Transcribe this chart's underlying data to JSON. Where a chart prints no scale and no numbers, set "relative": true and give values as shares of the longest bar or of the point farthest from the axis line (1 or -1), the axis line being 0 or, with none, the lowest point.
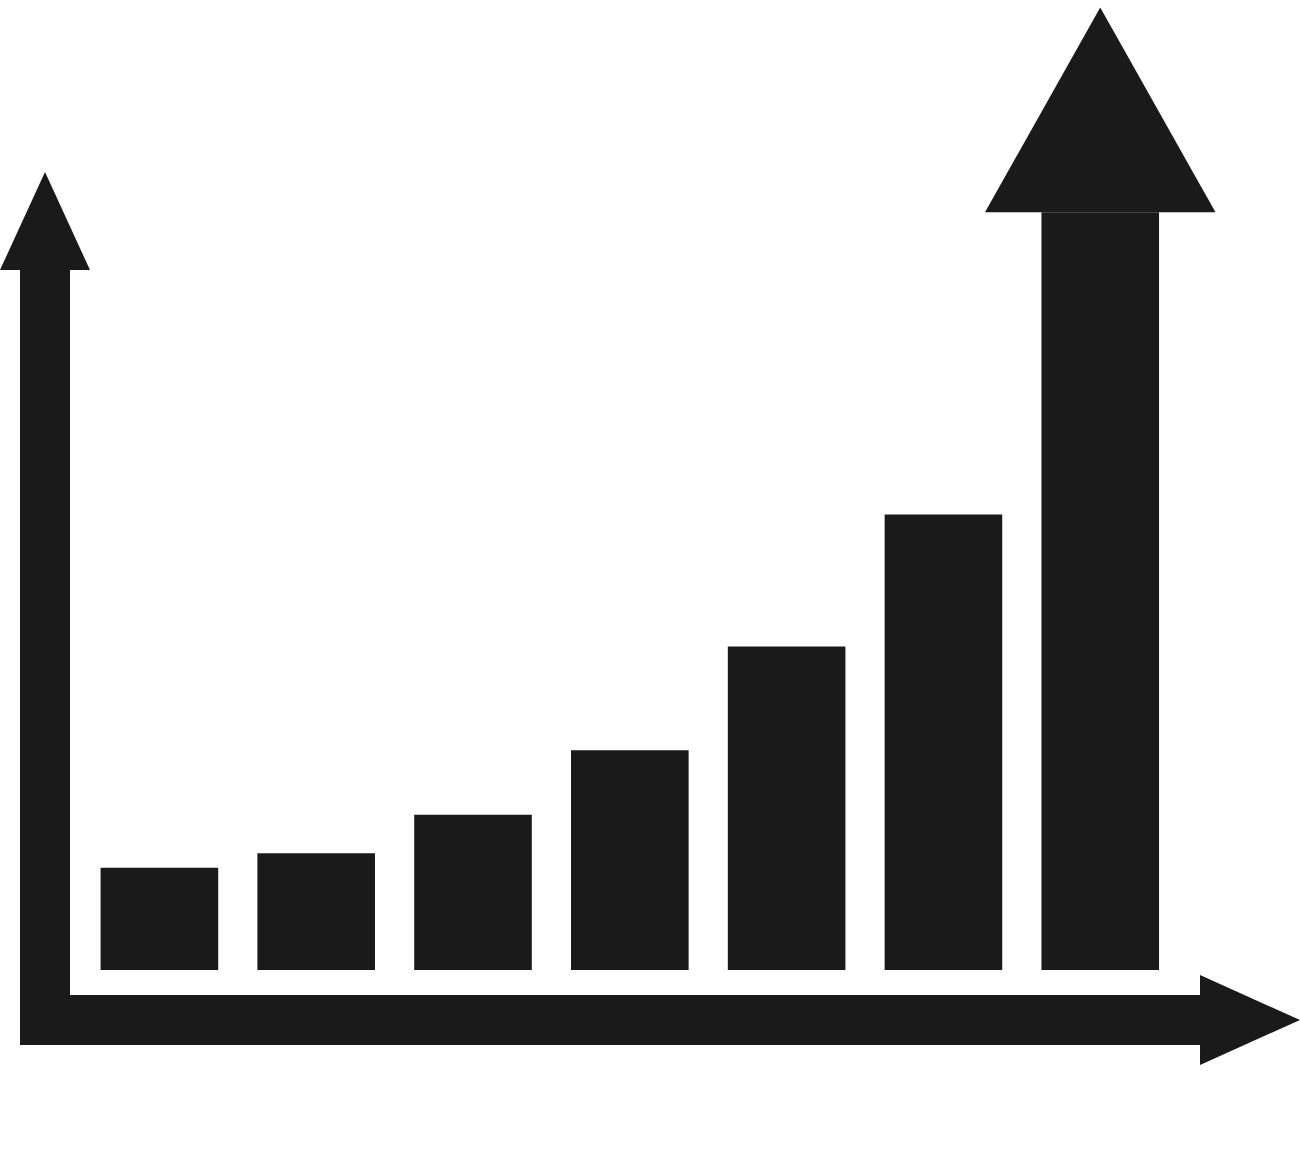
{
  "chart_data": {
    "type": "bar",
    "categories": [
      null,
      null,
      null,
      null,
      null,
      null,
      null
    ],
    "values": [
      0.135,
      0.154,
      0.205,
      0.29,
      0.427,
      0.601,
      1.0
    ],
    "color": "#1a1a1a",
    "relative": true
  }
}
